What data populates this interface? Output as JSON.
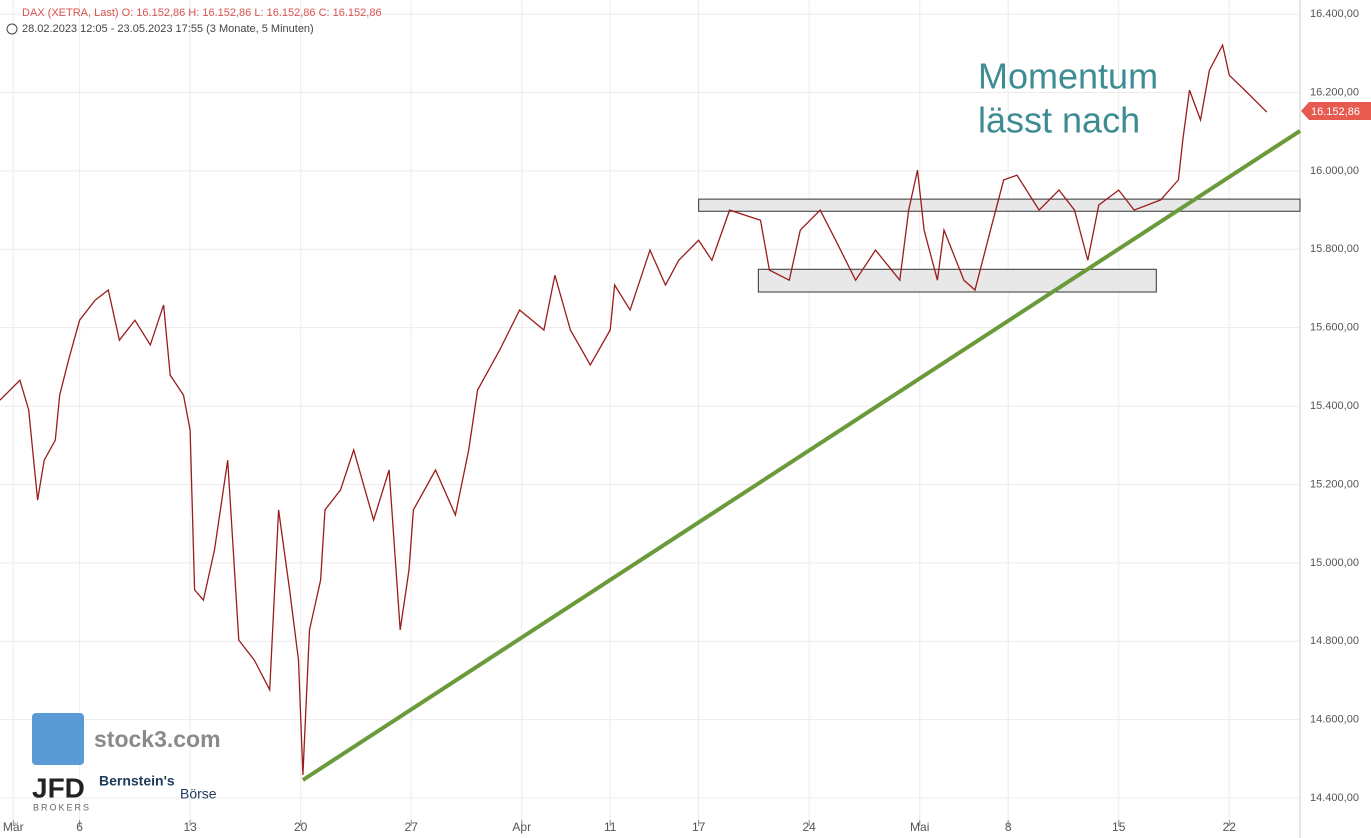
{
  "chart_data": {
    "type": "line",
    "header": "DAX (XETRA, Last)  O: 16.152,86  H: 16.152,86  L: 16.152,86  C: 16.152,86",
    "period": "28.02.2023 12:05 - 23.05.2023 17:55   (3 Monate, 5 Minuten)",
    "annotation": [
      "Momentum",
      "lässt nach"
    ],
    "logos": [
      "stock3.com",
      "JFD",
      "BROKERS",
      "Bernstein's",
      "Börse"
    ],
    "color": "#9b1c1c",
    "x": [
      -0.6,
      0.3,
      0.7,
      1.1,
      1.4,
      1.9,
      2.1,
      2.5,
      3.0,
      3.7,
      4.3,
      4.8,
      5.5,
      6.2,
      6.8,
      7.1,
      7.7,
      8.0,
      8.2,
      8.6,
      9.1,
      9.7,
      10.2,
      10.9,
      11.6,
      12.0,
      12.5,
      12.9,
      13.1,
      13.4,
      13.9,
      14.1,
      14.8,
      15.4,
      16.3,
      17.0,
      17.5,
      17.9,
      18.1,
      19.1,
      20.0,
      20.6,
      21.0,
      22.0,
      22.9,
      24.0,
      24.5,
      25.2,
      26.1,
      27.0,
      27.2,
      27.9,
      28.8,
      29.5,
      30.1,
      31.0,
      31.6,
      32.4,
      33.8,
      34.2,
      35.1,
      35.6,
      36.5,
      37.2,
      38.1,
      39.0,
      40.1,
      40.5,
      40.9,
      41.2,
      41.8,
      42.1,
      43.0,
      43.5,
      44.2,
      44.8,
      45.4,
      46.4,
      47.3,
      48.0,
      48.6,
      49.1,
      50.0,
      50.7,
      51.9,
      52.7,
      52.9,
      53.2,
      53.7,
      54.1,
      54.7,
      55.0,
      55.7,
      56.7
    ],
    "values": [
      15415,
      15466,
      15390,
      15160,
      15262,
      15313,
      15428,
      15517,
      15619,
      15670,
      15696,
      15568,
      15619,
      15556,
      15658,
      15479,
      15428,
      15339,
      14931,
      14905,
      15033,
      15262,
      14803,
      14752,
      14676,
      15135,
      14931,
      14752,
      14459,
      14829,
      14956,
      15135,
      15186,
      15288,
      15109,
      15237,
      14829,
      14982,
      15135,
      15237,
      15122,
      15288,
      15441,
      15543,
      15645,
      15594,
      15734,
      15594,
      15505,
      15594,
      15709,
      15645,
      15798,
      15709,
      15772,
      15823,
      15772,
      15900,
      15874,
      15747,
      15721,
      15849,
      15900,
      15823,
      15721,
      15798,
      15721,
      15900,
      16002,
      15849,
      15721,
      15849,
      15721,
      15696,
      15849,
      15977,
      15989,
      15900,
      15951,
      15900,
      15772,
      15913,
      15951,
      15900,
      15926,
      15977,
      16079,
      16206,
      16130,
      16257,
      16321,
      16244,
      16206,
      16150
    ],
    "zones": [
      [
        15897,
        15928,
        31.0,
        58.2
      ],
      [
        15691,
        15749,
        33.7,
        51.7
      ]
    ],
    "zone_color": "#e8e8e8",
    "trendline": {
      "x": [
        13.1,
        58.2
      ],
      "values": [
        14446,
        16102
      ],
      "color": "#6a9a3a"
    },
    "last_price": {
      "value": 16152.86,
      "label": "16.152,86"
    },
    "xlim": [
      -0.6,
      58.2
    ],
    "ylim": [
      14298,
      16436
    ],
    "xticks": [
      {
        "value": 0,
        "label": "Mär"
      },
      {
        "value": 3,
        "label": "6"
      },
      {
        "value": 8,
        "label": "13"
      },
      {
        "value": 13,
        "label": "20"
      },
      {
        "value": 18,
        "label": "27"
      },
      {
        "value": 23,
        "label": "Apr"
      },
      {
        "value": 27,
        "label": "11"
      },
      {
        "value": 31,
        "label": "17"
      },
      {
        "value": 36,
        "label": "24"
      },
      {
        "value": 41,
        "label": "Mai"
      },
      {
        "value": 45,
        "label": "8"
      },
      {
        "value": 50,
        "label": "15"
      },
      {
        "value": 55,
        "label": "22"
      }
    ],
    "yticks": [
      {
        "value": 14400,
        "label": "14.400,00"
      },
      {
        "value": 14600,
        "label": "14.600,00"
      },
      {
        "value": 14800,
        "label": "14.800,00"
      },
      {
        "value": 15000,
        "label": "15.000,00"
      },
      {
        "value": 15200,
        "label": "15.200,00"
      },
      {
        "value": 15400,
        "label": "15.400,00"
      },
      {
        "value": 15600,
        "label": "15.600,00"
      },
      {
        "value": 15800,
        "label": "15.800,00"
      },
      {
        "value": 16000,
        "label": "16.000,00"
      },
      {
        "value": 16200,
        "label": "16.200,00"
      },
      {
        "value": 16400,
        "label": "16.400,00"
      }
    ],
    "grid": true
  }
}
